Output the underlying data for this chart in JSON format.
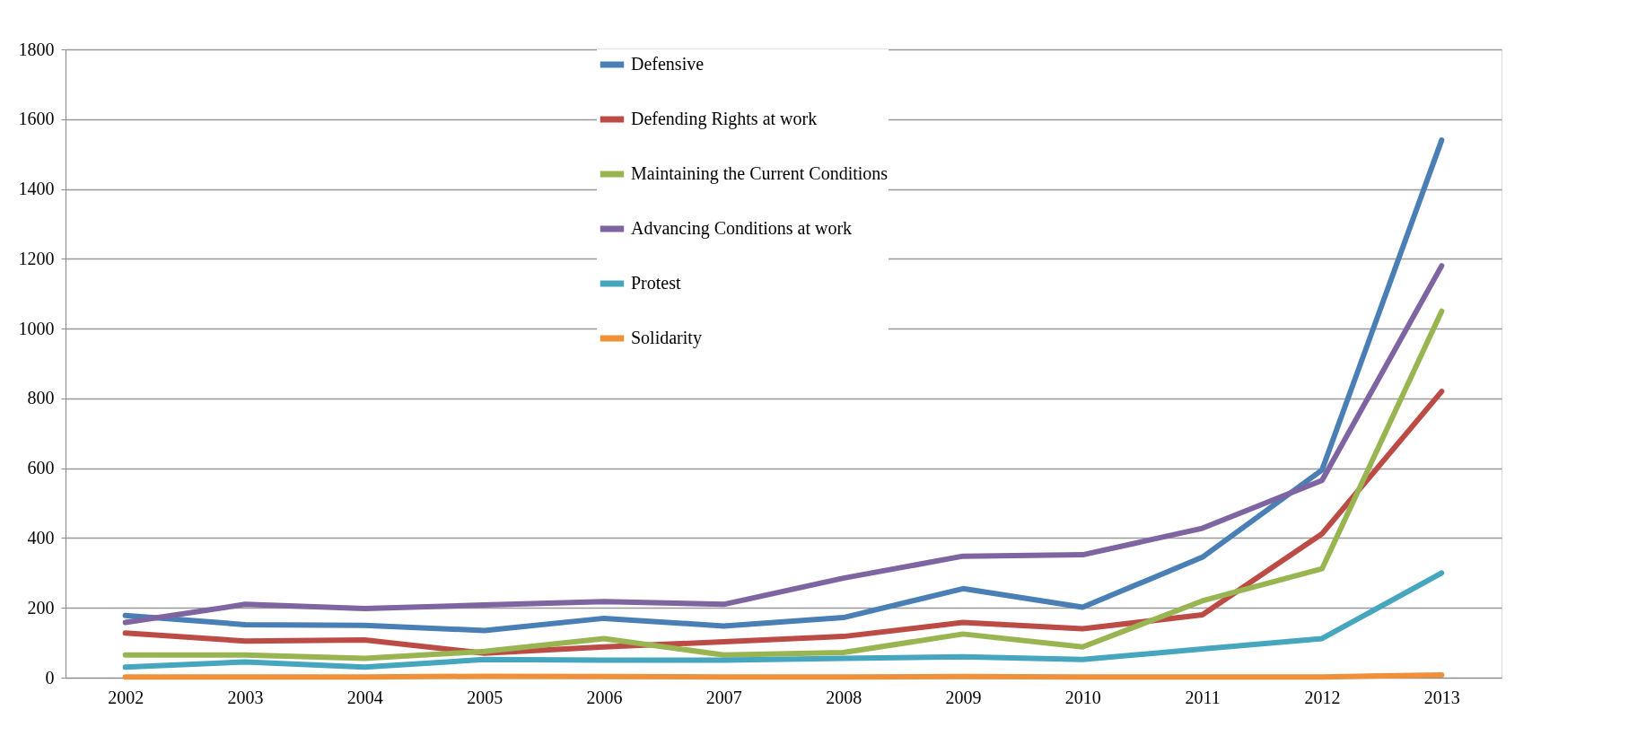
{
  "chart_data": {
    "type": "line",
    "categories": [
      "2002",
      "2003",
      "2004",
      "2005",
      "2006",
      "2007",
      "2008",
      "2009",
      "2010",
      "2011",
      "2012",
      "2013"
    ],
    "series": [
      {
        "name": "Defensive",
        "color": "#4a7fb5",
        "values": [
          178,
          152,
          150,
          135,
          170,
          148,
          172,
          255,
          202,
          345,
          595,
          1540
        ]
      },
      {
        "name": "Defending Rights at work",
        "color": "#bd4b45",
        "values": [
          128,
          105,
          108,
          70,
          88,
          103,
          118,
          158,
          140,
          180,
          412,
          820
        ]
      },
      {
        "name": "Maintaining the Current Conditions",
        "color": "#98b552",
        "values": [
          65,
          65,
          55,
          75,
          112,
          65,
          72,
          125,
          88,
          220,
          312,
          1050
        ]
      },
      {
        "name": "Advancing Conditions at work",
        "color": "#7e64a0",
        "values": [
          158,
          210,
          198,
          208,
          218,
          210,
          285,
          348,
          352,
          428,
          565,
          1180
        ]
      },
      {
        "name": "Protest",
        "color": "#46a6be",
        "values": [
          30,
          45,
          30,
          52,
          50,
          50,
          55,
          60,
          52,
          82,
          112,
          300
        ]
      },
      {
        "name": "Solidarity",
        "color": "#f0913a",
        "values": [
          2,
          2,
          2,
          4,
          3,
          2,
          2,
          3,
          2,
          2,
          2,
          8
        ]
      }
    ],
    "ylim": [
      0,
      1800
    ],
    "yticks": [
      0,
      200,
      400,
      600,
      800,
      1000,
      1200,
      1400,
      1600,
      1800
    ],
    "grid": "y",
    "legend": "top",
    "marker": "none",
    "line_style": "solid"
  }
}
